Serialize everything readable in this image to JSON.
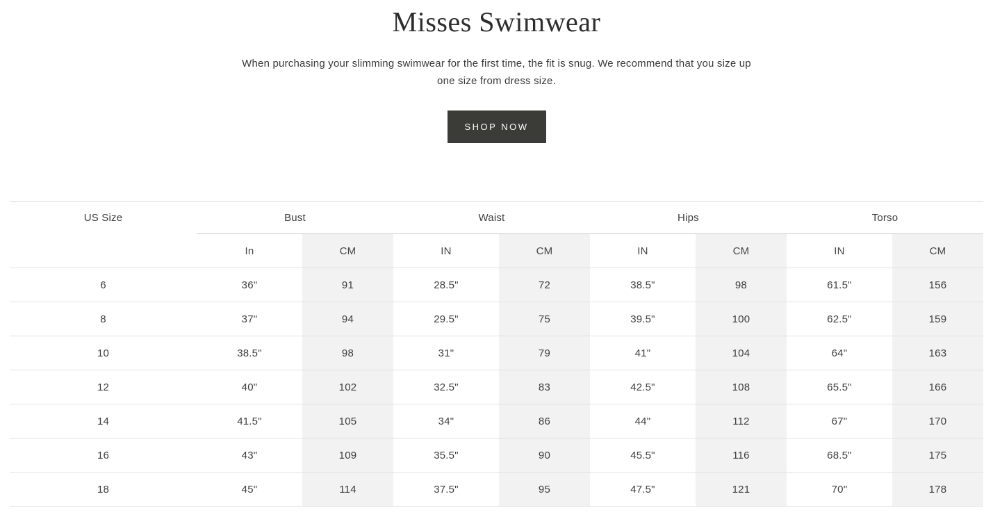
{
  "page": {
    "title": "Misses Swimwear",
    "subtitle": "When purchasing your slimming swimwear for the first time, the fit is snug. We recommend that you size up one size from dress size.",
    "shop_button_label": "SHOP NOW"
  },
  "colors": {
    "button_bg": "#3b3b37",
    "button_text": "#ffffff",
    "cm_column_bg": "#f2f2f2",
    "row_border": "#e1e1e1",
    "subheader_border": "#cacaca",
    "table_top_border": "#d6d6d6",
    "body_text": "#3d3d3d"
  },
  "size_table": {
    "group_headers": [
      {
        "label": "US Size",
        "colspan": 1
      },
      {
        "label": "Bust",
        "colspan": 2
      },
      {
        "label": "Waist",
        "colspan": 2
      },
      {
        "label": "Hips",
        "colspan": 2
      },
      {
        "label": "Torso",
        "colspan": 2
      }
    ],
    "unit_headers": [
      "In",
      "CM",
      "IN",
      "CM",
      "IN",
      "CM",
      "IN",
      "CM"
    ],
    "rows": [
      {
        "us_size": "6",
        "values": [
          "36\"",
          "91",
          "28.5\"",
          "72",
          "38.5\"",
          "98",
          "61.5\"",
          "156"
        ]
      },
      {
        "us_size": "8",
        "values": [
          "37\"",
          "94",
          "29.5\"",
          "75",
          "39.5\"",
          "100",
          "62.5\"",
          "159"
        ]
      },
      {
        "us_size": "10",
        "values": [
          "38.5\"",
          "98",
          "31\"",
          "79",
          "41\"",
          "104",
          "64\"",
          "163"
        ]
      },
      {
        "us_size": "12",
        "values": [
          "40\"",
          "102",
          "32.5\"",
          "83",
          "42.5\"",
          "108",
          "65.5\"",
          "166"
        ]
      },
      {
        "us_size": "14",
        "values": [
          "41.5\"",
          "105",
          "34\"",
          "86",
          "44\"",
          "112",
          "67\"",
          "170"
        ]
      },
      {
        "us_size": "16",
        "values": [
          "43\"",
          "109",
          "35.5\"",
          "90",
          "45.5\"",
          "116",
          "68.5\"",
          "175"
        ]
      },
      {
        "us_size": "18",
        "values": [
          "45\"",
          "114",
          "37.5\"",
          "95",
          "47.5\"",
          "121",
          "70\"",
          "178"
        ]
      }
    ]
  }
}
